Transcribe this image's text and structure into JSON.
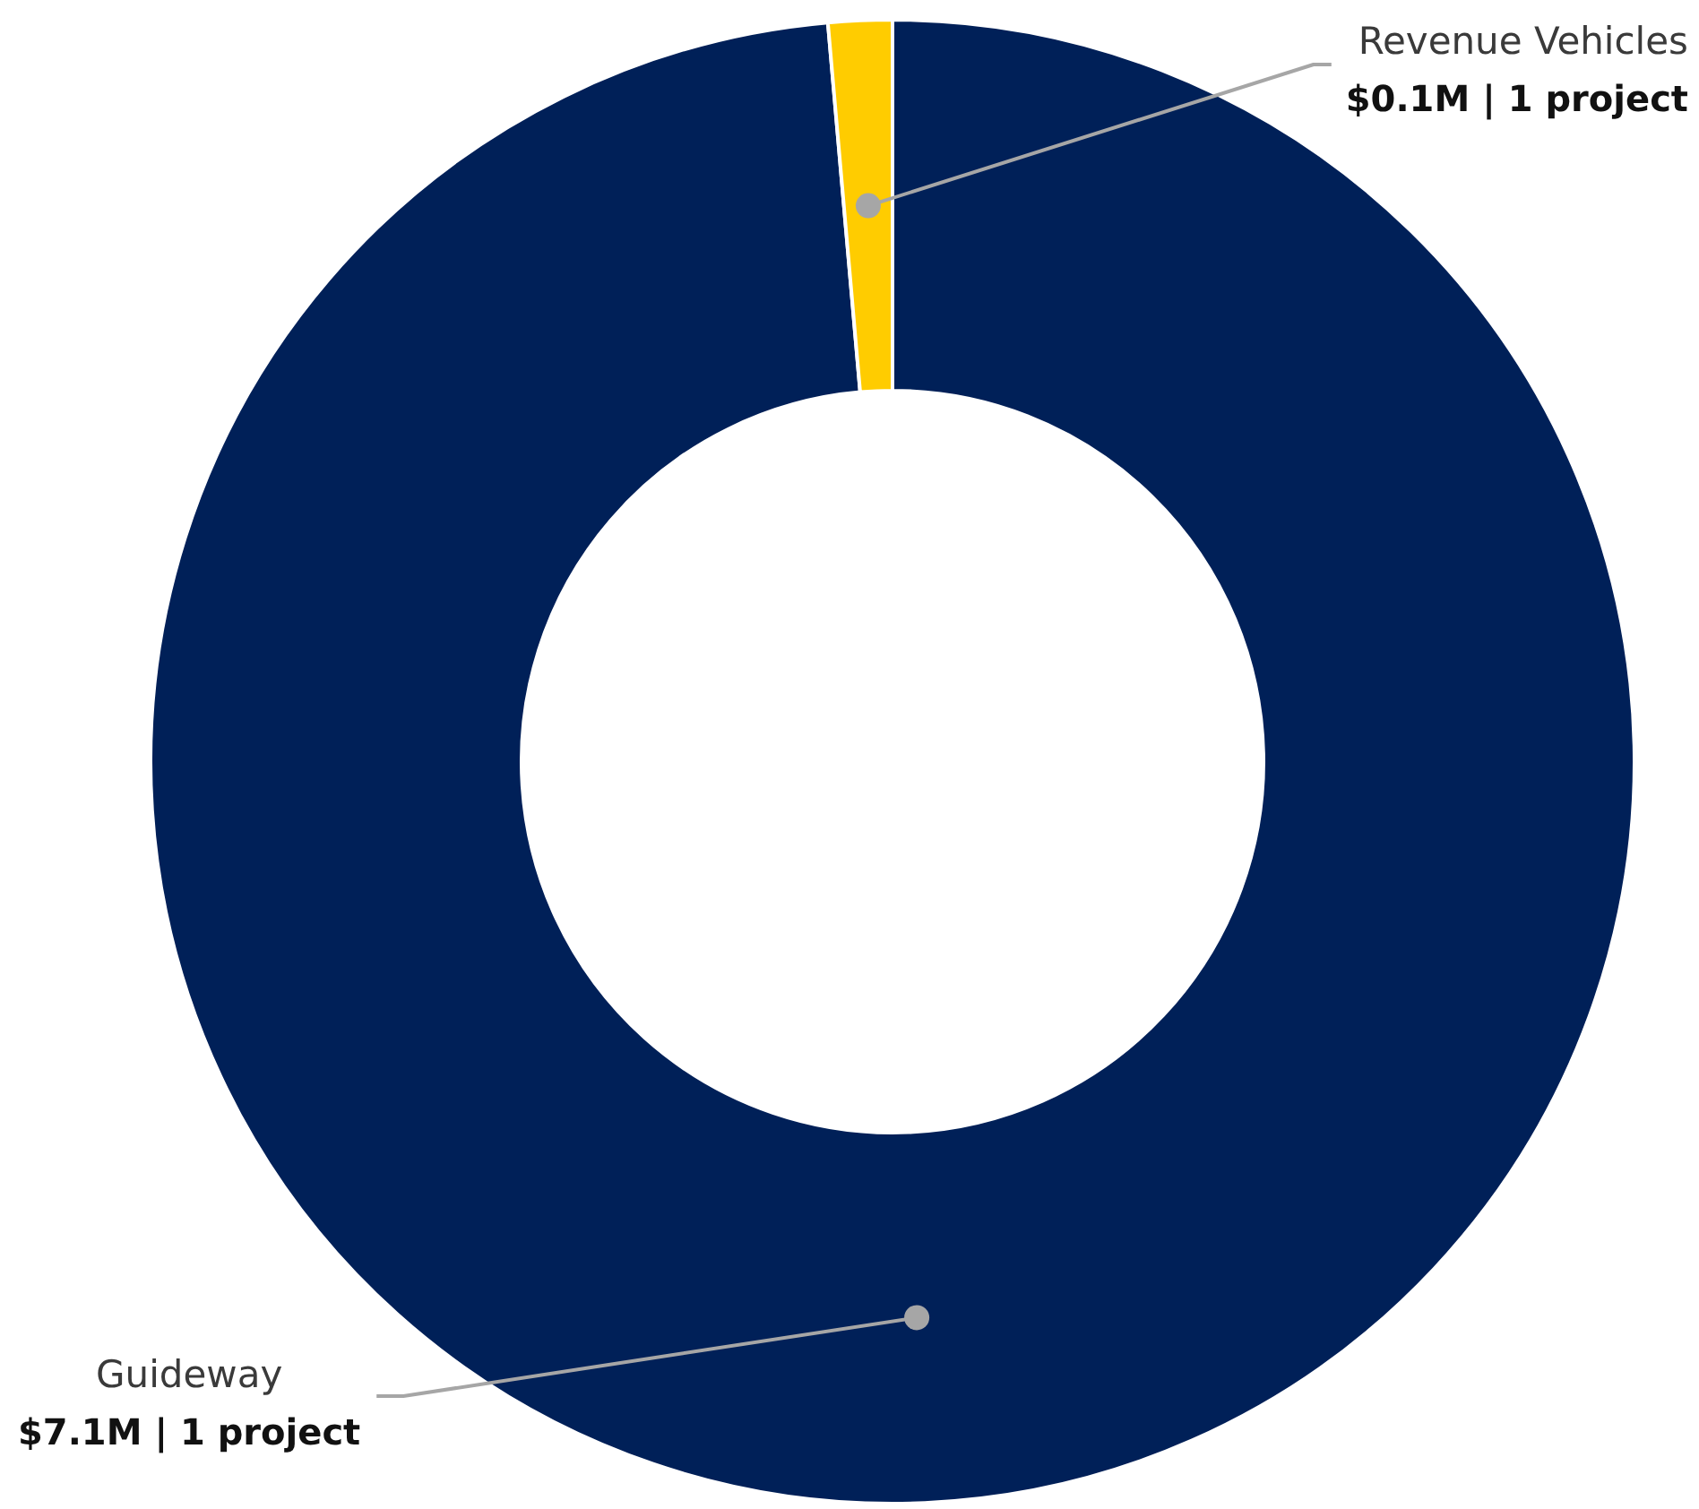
{
  "chart_data": {
    "type": "donut",
    "categories": [
      "Guideway",
      "Revenue Vehicles"
    ],
    "values": [
      7100000,
      100000
    ],
    "colors": [
      "#002058",
      "#ffcc00"
    ],
    "value_labels": [
      "$7.1M | 1 project",
      "$0.1M | 1 project"
    ],
    "legend": false
  }
}
